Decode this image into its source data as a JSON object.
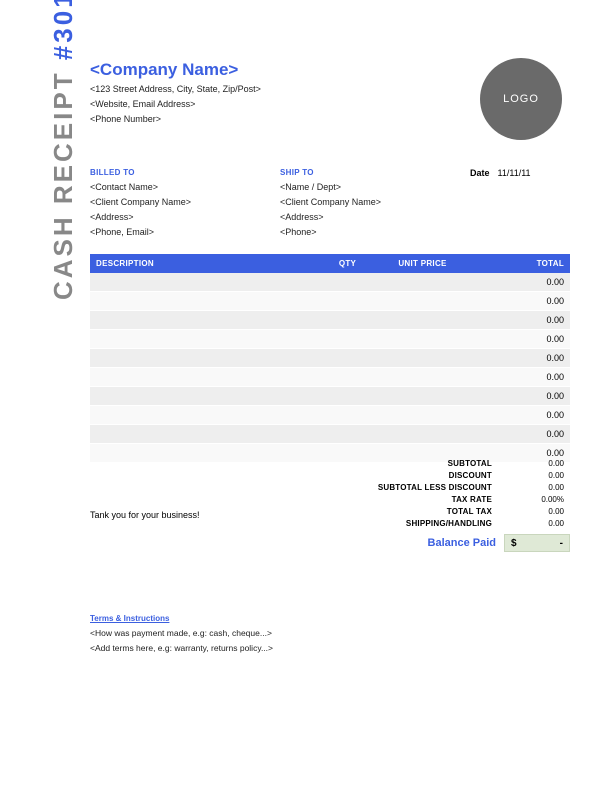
{
  "colors": {
    "accent": "#3b5fe0",
    "headerBg": "#3b5fe0",
    "rowOdd": "#eeeeee",
    "rowEven": "#f9f9f9",
    "balanceBg": "#dfe9d6",
    "logoBg": "#6a6a6a",
    "titleGray": "#888888"
  },
  "receipt": {
    "titlePrefix": "CASH RECEIPT ",
    "titleNumber": "#301"
  },
  "company": {
    "name": "<Company Name>",
    "address": "<123 Street Address, City, State, Zip/Post>",
    "web_email": "<Website, Email Address>",
    "phone": "<Phone Number>",
    "logoText": "LOGO"
  },
  "billed": {
    "heading": "BILLED TO",
    "contact": "<Contact Name>",
    "company": "<Client Company Name>",
    "address": "<Address>",
    "phone_email": "<Phone, Email>"
  },
  "ship": {
    "heading": "SHIP TO",
    "name_dept": "<Name / Dept>",
    "company": "<Client Company Name>",
    "address": "<Address>",
    "phone": "<Phone>"
  },
  "date": {
    "label": "Date",
    "value": "11/11/11"
  },
  "table": {
    "headers": {
      "description": "DESCRIPTION",
      "qty": "QTY",
      "unit_price": "UNIT PRICE",
      "total": "TOTAL"
    },
    "rows": [
      {
        "description": "",
        "qty": "",
        "unit_price": "",
        "total": "0.00"
      },
      {
        "description": "",
        "qty": "",
        "unit_price": "",
        "total": "0.00"
      },
      {
        "description": "",
        "qty": "",
        "unit_price": "",
        "total": "0.00"
      },
      {
        "description": "",
        "qty": "",
        "unit_price": "",
        "total": "0.00"
      },
      {
        "description": "",
        "qty": "",
        "unit_price": "",
        "total": "0.00"
      },
      {
        "description": "",
        "qty": "",
        "unit_price": "",
        "total": "0.00"
      },
      {
        "description": "",
        "qty": "",
        "unit_price": "",
        "total": "0.00"
      },
      {
        "description": "",
        "qty": "",
        "unit_price": "",
        "total": "0.00"
      },
      {
        "description": "",
        "qty": "",
        "unit_price": "",
        "total": "0.00"
      },
      {
        "description": "",
        "qty": "",
        "unit_price": "",
        "total": "0.00"
      }
    ]
  },
  "thankyou": "Tank you for your business!",
  "summary": {
    "subtotal": {
      "label": "SUBTOTAL",
      "value": "0.00"
    },
    "discount": {
      "label": "DISCOUNT",
      "value": "0.00"
    },
    "subtotal_less": {
      "label": "SUBTOTAL LESS DISCOUNT",
      "value": "0.00"
    },
    "tax_rate": {
      "label": "TAX RATE",
      "value": "0.00%"
    },
    "total_tax": {
      "label": "TOTAL TAX",
      "value": "0.00"
    },
    "shipping": {
      "label": "SHIPPING/HANDLING",
      "value": "0.00"
    },
    "balance": {
      "label": "Balance Paid",
      "currency": "$",
      "value": "-"
    }
  },
  "terms": {
    "heading": "Terms & Instructions",
    "line1": "<How was payment made, e.g: cash, cheque...>",
    "line2": "<Add terms here, e.g: warranty, returns policy...>"
  }
}
